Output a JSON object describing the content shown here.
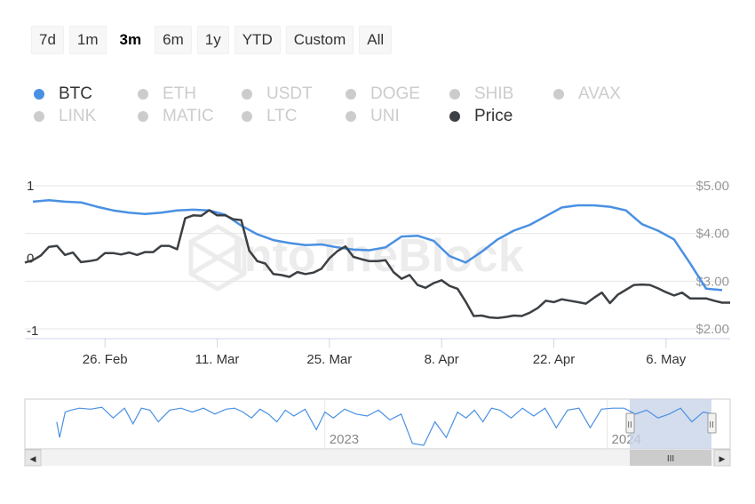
{
  "range_selector": {
    "buttons": [
      {
        "label": "7d",
        "active": false
      },
      {
        "label": "1m",
        "active": false
      },
      {
        "label": "3m",
        "active": true
      },
      {
        "label": "6m",
        "active": false
      },
      {
        "label": "1y",
        "active": false
      },
      {
        "label": "YTD",
        "active": false
      },
      {
        "label": "Custom",
        "active": false
      },
      {
        "label": "All",
        "active": false
      }
    ]
  },
  "legend": {
    "items": [
      {
        "label": "BTC",
        "color": "#4a90e2",
        "on": true
      },
      {
        "label": "ETH",
        "color": "#cccccc",
        "on": false
      },
      {
        "label": "USDT",
        "color": "#cccccc",
        "on": false
      },
      {
        "label": "DOGE",
        "color": "#cccccc",
        "on": false
      },
      {
        "label": "SHIB",
        "color": "#cccccc",
        "on": false
      },
      {
        "label": "AVAX",
        "color": "#cccccc",
        "on": false
      },
      {
        "label": "LINK",
        "color": "#cccccc",
        "on": false
      },
      {
        "label": "MATIC",
        "color": "#cccccc",
        "on": false
      },
      {
        "label": "LTC",
        "color": "#cccccc",
        "on": false
      },
      {
        "label": "UNI",
        "color": "#cccccc",
        "on": false
      },
      {
        "label": "Price",
        "color": "#3c4044",
        "on": true
      }
    ]
  },
  "watermark": "IntoTheBlock",
  "navigator": {
    "year_labels": [
      "2023",
      "2024"
    ],
    "scroll_grip": "III",
    "left_arrow": "◀",
    "right_arrow": "▶",
    "handle_grip": "II"
  },
  "chart_data": {
    "type": "line",
    "x_tick_labels": [
      "26. Feb",
      "11. Mar",
      "25. Mar",
      "8. Apr",
      "22. Apr",
      "6. May"
    ],
    "y_left": {
      "ticks": [
        "1",
        "0",
        "-1"
      ],
      "range": [
        -1,
        1
      ]
    },
    "y_right": {
      "ticks": [
        "$5.00",
        "$4.00",
        "$3.00",
        "$2.00"
      ],
      "range": [
        2,
        5
      ]
    },
    "grid": true,
    "legend_placement": "top",
    "series": [
      {
        "name": "BTC",
        "color": "#4a90e2",
        "axis": "left",
        "x": [
          "2024-02-17",
          "2024-02-19",
          "2024-02-21",
          "2024-02-23",
          "2024-02-25",
          "2024-02-27",
          "2024-02-29",
          "2024-03-02",
          "2024-03-04",
          "2024-03-06",
          "2024-03-08",
          "2024-03-10",
          "2024-03-12",
          "2024-03-14",
          "2024-03-16",
          "2024-03-18",
          "2024-03-20",
          "2024-03-22",
          "2024-03-24",
          "2024-03-26",
          "2024-03-28",
          "2024-03-30",
          "2024-04-01",
          "2024-04-03",
          "2024-04-05",
          "2024-04-07",
          "2024-04-09",
          "2024-04-11",
          "2024-04-13",
          "2024-04-15",
          "2024-04-17",
          "2024-04-19",
          "2024-04-21",
          "2024-04-23",
          "2024-04-25",
          "2024-04-27",
          "2024-04-29",
          "2024-05-01",
          "2024-05-03",
          "2024-05-05",
          "2024-05-07",
          "2024-05-09",
          "2024-05-11",
          "2024-05-13"
        ],
        "values": [
          0.78,
          0.8,
          0.78,
          0.77,
          0.71,
          0.66,
          0.63,
          0.61,
          0.63,
          0.66,
          0.67,
          0.66,
          0.6,
          0.45,
          0.33,
          0.25,
          0.21,
          0.18,
          0.19,
          0.15,
          0.12,
          0.11,
          0.15,
          0.3,
          0.31,
          0.24,
          0.03,
          -0.06,
          0.09,
          0.26,
          0.38,
          0.46,
          0.58,
          0.7,
          0.73,
          0.73,
          0.71,
          0.66,
          0.47,
          0.38,
          0.26,
          -0.07,
          -0.42,
          -0.44
        ]
      },
      {
        "name": "Price",
        "color": "#3c4044",
        "axis": "right",
        "x": [
          "2024-02-16",
          "2024-02-17",
          "2024-02-18",
          "2024-02-19",
          "2024-02-20",
          "2024-02-21",
          "2024-02-22",
          "2024-02-23",
          "2024-02-24",
          "2024-02-25",
          "2024-02-26",
          "2024-02-27",
          "2024-02-28",
          "2024-02-29",
          "2024-03-01",
          "2024-03-02",
          "2024-03-03",
          "2024-03-04",
          "2024-03-05",
          "2024-03-06",
          "2024-03-07",
          "2024-03-08",
          "2024-03-09",
          "2024-03-10",
          "2024-03-11",
          "2024-03-12",
          "2024-03-13",
          "2024-03-14",
          "2024-03-15",
          "2024-03-16",
          "2024-03-17",
          "2024-03-18",
          "2024-03-19",
          "2024-03-20",
          "2024-03-21",
          "2024-03-22",
          "2024-03-23",
          "2024-03-24",
          "2024-03-25",
          "2024-03-26",
          "2024-03-27",
          "2024-03-28",
          "2024-03-29",
          "2024-03-30",
          "2024-03-31",
          "2024-04-01",
          "2024-04-02",
          "2024-04-03",
          "2024-04-04",
          "2024-04-05",
          "2024-04-06",
          "2024-04-07",
          "2024-04-08",
          "2024-04-09",
          "2024-04-10",
          "2024-04-11",
          "2024-04-12",
          "2024-04-13",
          "2024-04-14",
          "2024-04-15",
          "2024-04-16",
          "2024-04-17",
          "2024-04-18",
          "2024-04-19",
          "2024-04-20",
          "2024-04-21",
          "2024-04-22",
          "2024-04-23",
          "2024-04-24",
          "2024-04-25",
          "2024-04-26",
          "2024-04-27",
          "2024-04-28",
          "2024-04-29",
          "2024-04-30",
          "2024-05-01",
          "2024-05-02",
          "2024-05-03",
          "2024-05-04",
          "2024-05-05",
          "2024-05-06",
          "2024-05-07",
          "2024-05-08",
          "2024-05-09",
          "2024-05-10",
          "2024-05-11",
          "2024-05-12",
          "2024-05-13",
          "2024-05-14"
        ],
        "values": [
          3.39,
          3.44,
          3.54,
          3.72,
          3.74,
          3.55,
          3.6,
          3.4,
          3.42,
          3.45,
          3.59,
          3.59,
          3.56,
          3.6,
          3.55,
          3.61,
          3.61,
          3.74,
          3.74,
          3.67,
          4.32,
          4.38,
          4.37,
          4.49,
          4.38,
          4.38,
          4.3,
          4.28,
          3.64,
          3.42,
          3.37,
          3.15,
          3.13,
          3.09,
          3.19,
          3.15,
          3.18,
          3.26,
          3.48,
          3.63,
          3.73,
          3.51,
          3.46,
          3.42,
          3.42,
          3.44,
          3.19,
          3.05,
          3.13,
          2.92,
          2.86,
          2.96,
          3.02,
          2.9,
          2.84,
          2.57,
          2.27,
          2.28,
          2.24,
          2.23,
          2.25,
          2.28,
          2.27,
          2.34,
          2.44,
          2.59,
          2.56,
          2.62,
          2.59,
          2.56,
          2.53,
          2.65,
          2.76,
          2.54,
          2.72,
          2.82,
          2.92,
          2.93,
          2.92,
          2.85,
          2.77,
          2.7,
          2.76,
          2.64,
          2.64,
          2.64,
          2.59,
          2.55,
          2.55
        ]
      }
    ],
    "navigator_series": {
      "name": "BTC",
      "x": [
        2022.05,
        2022.06,
        2022.08,
        2022.1,
        2022.13,
        2022.17,
        2022.21,
        2022.25,
        2022.29,
        2022.32,
        2022.35,
        2022.38,
        2022.41,
        2022.45,
        2022.49,
        2022.53,
        2022.57,
        2022.61,
        2022.65,
        2022.68,
        2022.71,
        2022.74,
        2022.77,
        2022.8,
        2022.83,
        2022.86,
        2022.89,
        2022.93,
        2022.97,
        2023.0,
        2023.03,
        2023.07,
        2023.11,
        2023.15,
        2023.19,
        2023.23,
        2023.27,
        2023.31,
        2023.35,
        2023.39,
        2023.43,
        2023.47,
        2023.5,
        2023.53,
        2023.56,
        2023.59,
        2023.62,
        2023.66,
        2023.7,
        2023.74,
        2023.78,
        2023.82,
        2023.86,
        2023.9,
        2023.94,
        2023.98,
        2024.02,
        2024.06,
        2024.1,
        2024.14,
        2024.18,
        2024.22,
        2024.26,
        2024.3,
        2024.34,
        2024.38
      ],
      "values": [
        0.2,
        -0.6,
        0.7,
        0.8,
        0.9,
        0.85,
        0.95,
        0.4,
        0.9,
        0.1,
        0.9,
        0.8,
        0.2,
        0.8,
        0.9,
        0.7,
        0.9,
        0.6,
        0.85,
        0.9,
        0.7,
        0.4,
        0.85,
        0.6,
        0.2,
        0.8,
        0.5,
        0.85,
        -0.2,
        0.7,
        0.4,
        0.85,
        0.6,
        0.5,
        0.8,
        0.3,
        0.6,
        -0.9,
        -1.0,
        0.2,
        -0.6,
        0.7,
        0.4,
        0.8,
        0.2,
        0.9,
        0.8,
        0.4,
        0.9,
        0.5,
        0.9,
        -0.1,
        0.8,
        0.9,
        -0.1,
        0.85,
        0.9,
        0.9,
        0.6,
        0.8,
        0.4,
        0.6,
        0.9,
        0.2,
        0.7,
        0.6
      ]
    }
  }
}
